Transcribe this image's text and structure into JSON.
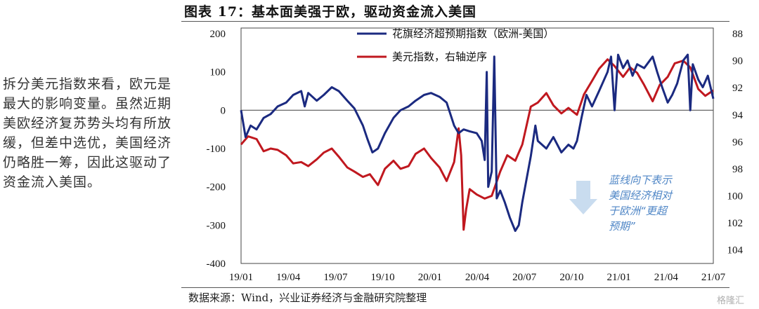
{
  "side_text": "拆分美元指数来看，欧元是最大的影响变量。虽然近期美欧经济复苏势头均有所放缓，但差中选优，美国经济仍略胜一筹，因此这驱动了资金流入美国。",
  "figure_title": "图表 17：基本面美强于欧，驱动资金流入美国",
  "source": "数据来源：Wind，兴业证券经济与金融研究院整理",
  "watermark": "格隆汇",
  "colors": {
    "series1": "#1b2a80",
    "series2": "#c0181f",
    "annotation": "#4f86c6",
    "arrow": "#c9dcef"
  },
  "chart_data": {
    "type": "line",
    "x_ticks": [
      "19/01",
      "19/04",
      "19/07",
      "19/10",
      "20/01",
      "20/04",
      "20/07",
      "20/10",
      "21/01",
      "21/04",
      "21/07"
    ],
    "y_left": {
      "ticks": [
        200,
        100,
        0,
        -100,
        -200,
        -300,
        -400
      ],
      "range": [
        -400,
        200
      ]
    },
    "y_right": {
      "ticks": [
        88,
        90,
        92,
        94,
        96,
        98,
        100,
        102,
        104
      ],
      "range": [
        88,
        105
      ],
      "inverted": true
    },
    "zero_line": true,
    "legend_position": "top-center",
    "annotation": "蓝线向下表示美国经济相对于欧洲“更超预期”",
    "series": [
      {
        "name": "花旗经济超预期指数（欧洲-美国）",
        "axis": "left",
        "points": [
          [
            "2019-01-01",
            0
          ],
          [
            "2019-01-10",
            -70
          ],
          [
            "2019-01-20",
            -40
          ],
          [
            "2019-02-01",
            -50
          ],
          [
            "2019-02-15",
            -20
          ],
          [
            "2019-03-01",
            -10
          ],
          [
            "2019-03-15",
            10
          ],
          [
            "2019-04-01",
            20
          ],
          [
            "2019-04-15",
            40
          ],
          [
            "2019-05-01",
            50
          ],
          [
            "2019-05-08",
            10
          ],
          [
            "2019-05-15",
            45
          ],
          [
            "2019-06-01",
            25
          ],
          [
            "2019-06-15",
            40
          ],
          [
            "2019-07-01",
            60
          ],
          [
            "2019-07-15",
            50
          ],
          [
            "2019-08-01",
            25
          ],
          [
            "2019-08-15",
            5
          ],
          [
            "2019-09-01",
            -40
          ],
          [
            "2019-09-10",
            -75
          ],
          [
            "2019-09-20",
            -110
          ],
          [
            "2019-10-01",
            -100
          ],
          [
            "2019-10-15",
            -60
          ],
          [
            "2019-11-01",
            -20
          ],
          [
            "2019-11-15",
            0
          ],
          [
            "2019-12-01",
            10
          ],
          [
            "2019-12-15",
            25
          ],
          [
            "2020-01-01",
            40
          ],
          [
            "2020-01-15",
            45
          ],
          [
            "2020-02-01",
            35
          ],
          [
            "2020-02-15",
            20
          ],
          [
            "2020-03-01",
            -40
          ],
          [
            "2020-03-10",
            -60
          ],
          [
            "2020-03-20",
            -50
          ],
          [
            "2020-04-01",
            -55
          ],
          [
            "2020-04-15",
            -60
          ],
          [
            "2020-04-25",
            -80
          ],
          [
            "2020-05-01",
            -130
          ],
          [
            "2020-05-05",
            100
          ],
          [
            "2020-05-08",
            -200
          ],
          [
            "2020-05-15",
            -160
          ],
          [
            "2020-05-20",
            140
          ],
          [
            "2020-05-25",
            -230
          ],
          [
            "2020-06-01",
            -210
          ],
          [
            "2020-06-10",
            -240
          ],
          [
            "2020-06-20",
            -280
          ],
          [
            "2020-07-01",
            -315
          ],
          [
            "2020-07-08",
            -300
          ],
          [
            "2020-07-15",
            -240
          ],
          [
            "2020-08-01",
            -120
          ],
          [
            "2020-08-10",
            -40
          ],
          [
            "2020-08-15",
            -80
          ],
          [
            "2020-09-01",
            -100
          ],
          [
            "2020-09-15",
            -70
          ],
          [
            "2020-10-01",
            -110
          ],
          [
            "2020-10-15",
            -90
          ],
          [
            "2020-10-25",
            -100
          ],
          [
            "2020-11-01",
            -80
          ],
          [
            "2020-11-10",
            -20
          ],
          [
            "2020-11-20",
            40
          ],
          [
            "2020-12-01",
            10
          ],
          [
            "2020-12-15",
            50
          ],
          [
            "2021-01-01",
            100
          ],
          [
            "2021-01-08",
            140
          ],
          [
            "2021-01-15",
            0
          ],
          [
            "2021-01-22",
            145
          ],
          [
            "2021-02-01",
            110
          ],
          [
            "2021-02-10",
            130
          ],
          [
            "2021-02-20",
            90
          ],
          [
            "2021-03-01",
            120
          ],
          [
            "2021-03-15",
            110
          ],
          [
            "2021-04-01",
            140
          ],
          [
            "2021-04-10",
            100
          ],
          [
            "2021-04-20",
            60
          ],
          [
            "2021-05-01",
            20
          ],
          [
            "2021-05-10",
            40
          ],
          [
            "2021-05-20",
            70
          ],
          [
            "2021-06-01",
            130
          ],
          [
            "2021-06-10",
            145
          ],
          [
            "2021-06-15",
            0
          ],
          [
            "2021-06-20",
            120
          ],
          [
            "2021-07-01",
            80
          ],
          [
            "2021-07-10",
            60
          ],
          [
            "2021-07-20",
            90
          ],
          [
            "2021-07-31",
            30
          ]
        ]
      },
      {
        "name": "美元指数，右轴逆序",
        "axis": "right",
        "points": [
          [
            "2019-01-01",
            96.2
          ],
          [
            "2019-01-15",
            95.6
          ],
          [
            "2019-02-01",
            95.8
          ],
          [
            "2019-02-15",
            96.7
          ],
          [
            "2019-03-01",
            96.5
          ],
          [
            "2019-03-15",
            96.6
          ],
          [
            "2019-04-01",
            97.0
          ],
          [
            "2019-04-15",
            97.6
          ],
          [
            "2019-05-01",
            97.5
          ],
          [
            "2019-05-15",
            97.8
          ],
          [
            "2019-06-01",
            97.3
          ],
          [
            "2019-06-15",
            96.8
          ],
          [
            "2019-07-01",
            96.5
          ],
          [
            "2019-07-15",
            97.1
          ],
          [
            "2019-08-01",
            97.9
          ],
          [
            "2019-08-15",
            98.2
          ],
          [
            "2019-09-01",
            98.6
          ],
          [
            "2019-09-15",
            98.4
          ],
          [
            "2019-10-01",
            99.2
          ],
          [
            "2019-10-15",
            98.0
          ],
          [
            "2019-11-01",
            97.4
          ],
          [
            "2019-11-15",
            98.0
          ],
          [
            "2019-12-01",
            97.8
          ],
          [
            "2019-12-15",
            96.9
          ],
          [
            "2020-01-01",
            96.5
          ],
          [
            "2020-01-15",
            97.2
          ],
          [
            "2020-02-01",
            97.9
          ],
          [
            "2020-02-15",
            98.9
          ],
          [
            "2020-03-01",
            97.5
          ],
          [
            "2020-03-10",
            95.0
          ],
          [
            "2020-03-15",
            97.0
          ],
          [
            "2020-03-20",
            102.5
          ],
          [
            "2020-03-25",
            101.0
          ],
          [
            "2020-04-01",
            99.5
          ],
          [
            "2020-04-15",
            99.9
          ],
          [
            "2020-05-01",
            100.2
          ],
          [
            "2020-05-15",
            100.0
          ],
          [
            "2020-06-01",
            98.2
          ],
          [
            "2020-06-15",
            97.0
          ],
          [
            "2020-07-01",
            97.4
          ],
          [
            "2020-07-15",
            96.2
          ],
          [
            "2020-08-01",
            93.4
          ],
          [
            "2020-08-15",
            93.1
          ],
          [
            "2020-09-01",
            92.4
          ],
          [
            "2020-09-15",
            93.3
          ],
          [
            "2020-10-01",
            93.9
          ],
          [
            "2020-10-15",
            93.5
          ],
          [
            "2020-11-01",
            94.0
          ],
          [
            "2020-11-15",
            92.5
          ],
          [
            "2020-12-01",
            91.5
          ],
          [
            "2020-12-15",
            90.6
          ],
          [
            "2021-01-01",
            89.9
          ],
          [
            "2021-01-15",
            90.4
          ],
          [
            "2021-02-01",
            91.2
          ],
          [
            "2021-02-15",
            90.5
          ],
          [
            "2021-03-01",
            90.9
          ],
          [
            "2021-03-15",
            91.8
          ],
          [
            "2021-04-01",
            93.0
          ],
          [
            "2021-04-15",
            91.8
          ],
          [
            "2021-05-01",
            91.2
          ],
          [
            "2021-05-15",
            90.2
          ],
          [
            "2021-06-01",
            90.0
          ],
          [
            "2021-06-15",
            90.5
          ],
          [
            "2021-07-01",
            92.1
          ],
          [
            "2021-07-15",
            92.6
          ],
          [
            "2021-07-31",
            92.2
          ]
        ]
      }
    ]
  }
}
